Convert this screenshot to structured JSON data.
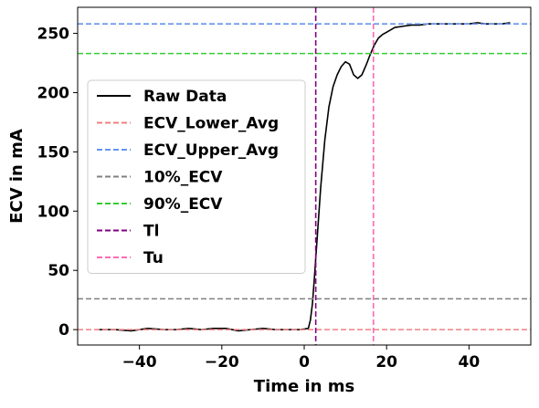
{
  "chart_data": {
    "type": "line",
    "title": "",
    "xlabel": "Time in ms",
    "ylabel": "ECV in mA",
    "xlim": [
      -55,
      55
    ],
    "ylim": [
      -13,
      272
    ],
    "xticks": [
      -40,
      -20,
      0,
      20,
      40
    ],
    "xtick_labels": [
      "−40",
      "−20",
      "0",
      "20",
      "40"
    ],
    "yticks": [
      0,
      50,
      100,
      150,
      200,
      250
    ],
    "ytick_labels": [
      "0",
      "50",
      "100",
      "150",
      "200",
      "250"
    ],
    "grid": false,
    "legend_position": "center-left",
    "series": [
      {
        "name": "Raw Data",
        "color": "#000000",
        "style": "solid",
        "x": [
          -50,
          -46,
          -42,
          -38,
          -34,
          -31,
          -28,
          -25,
          -22,
          -19,
          -16,
          -13,
          -10,
          -7,
          -4,
          -1,
          1,
          1.5,
          2,
          2.5,
          3,
          3.5,
          4,
          5,
          6,
          7,
          8,
          9,
          10,
          11,
          12,
          13,
          14,
          15,
          16,
          17,
          18,
          19,
          20,
          22,
          24,
          26,
          28,
          30,
          32,
          34,
          36,
          38,
          40,
          42,
          44,
          46,
          48,
          50
        ],
        "y": [
          0,
          0,
          -1,
          1,
          0,
          0,
          1,
          0,
          1,
          1,
          -1,
          0,
          1,
          0,
          0,
          0,
          1,
          8,
          22,
          45,
          70,
          95,
          120,
          160,
          188,
          205,
          215,
          222,
          226,
          224,
          215,
          212,
          215,
          223,
          232,
          240,
          246,
          249,
          251,
          255,
          256,
          257,
          257,
          258,
          258,
          258,
          258,
          258,
          258,
          259,
          258,
          258,
          258,
          259
        ]
      },
      {
        "name": "ECV_Lower_Avg",
        "color": "#f08080",
        "style": "dashed",
        "hline": 0
      },
      {
        "name": "ECV_Upper_Avg",
        "color": "#6495ed",
        "style": "dashed",
        "hline": 258
      },
      {
        "name": "10%_ECV",
        "color": "#808080",
        "style": "dashed",
        "hline": 26
      },
      {
        "name": "90%_ECV",
        "color": "#32cd32",
        "style": "dashed",
        "hline": 233
      },
      {
        "name": "Tl",
        "color": "#800080",
        "style": "dashed",
        "vline": 2.8
      },
      {
        "name": "Tu",
        "color": "#ff69b4",
        "style": "dashed",
        "vline": 16.8
      }
    ]
  }
}
